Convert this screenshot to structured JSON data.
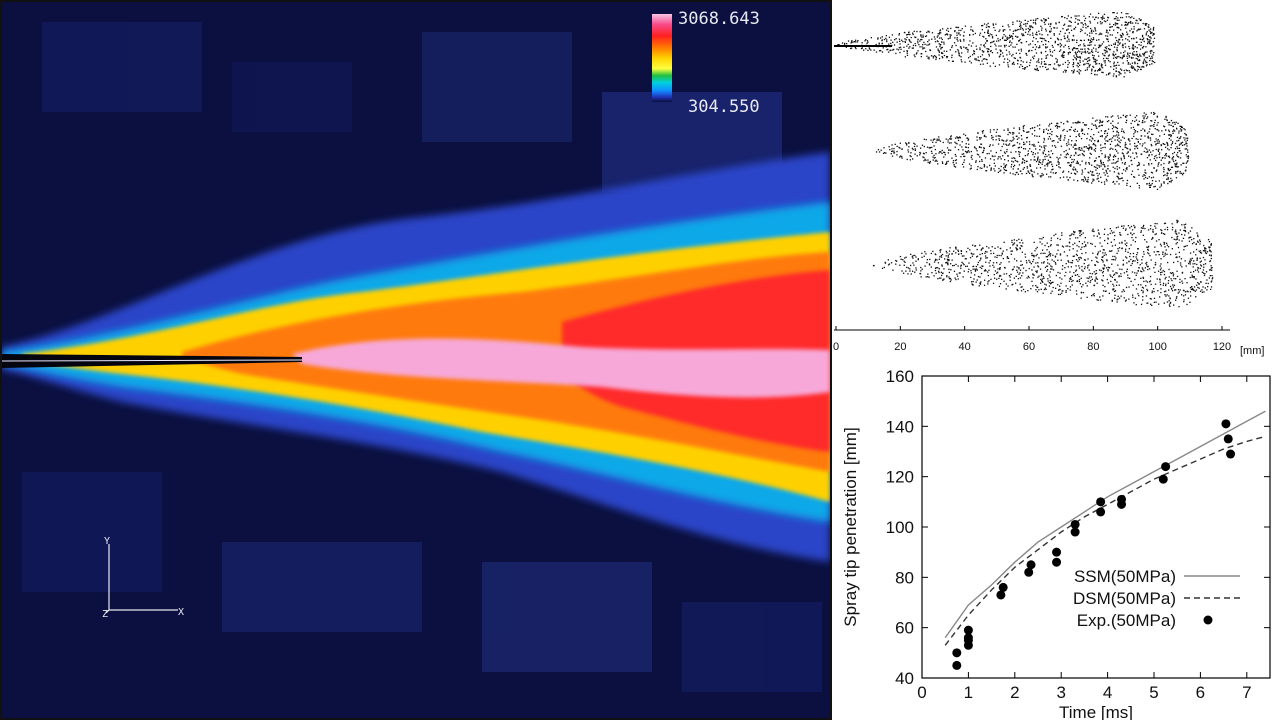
{
  "colorbar": {
    "max_label": "3068.643",
    "min_label": "304.550",
    "colors": [
      "#f9c6e6",
      "#f84a8a",
      "#ff2020",
      "#ff7a00",
      "#ffd200",
      "#ffff40",
      "#20c040",
      "#00d0e0",
      "#1090ff",
      "#2038c0",
      "#0a0f3a"
    ]
  },
  "axes_triad": {
    "y_label": "Y",
    "z_label": "Z",
    "x_label": "X"
  },
  "spray_axis": {
    "ticks": [
      "0",
      "20",
      "40",
      "60",
      "80",
      "100",
      "120"
    ],
    "unit": "[mm]"
  },
  "chart_data": {
    "type": "line",
    "xlabel": "Time [ms]",
    "ylabel": "Spray tip penetration [mm]",
    "xlim": [
      0,
      7.5
    ],
    "ylim": [
      40,
      160
    ],
    "xticks": [
      "0",
      "1",
      "2",
      "3",
      "4",
      "5",
      "6",
      "7"
    ],
    "yticks": [
      "40",
      "60",
      "80",
      "100",
      "120",
      "140",
      "160"
    ],
    "legend_position": "bottom-right",
    "series": [
      {
        "name": "SSM(50MPa)",
        "style": "solid",
        "color": "#888888",
        "x": [
          0.5,
          1.0,
          1.5,
          2.0,
          2.5,
          3.0,
          3.5,
          4.0,
          4.5,
          5.0,
          5.5,
          6.0,
          6.5,
          7.0,
          7.4
        ],
        "y": [
          56,
          69,
          77,
          86,
          94,
          100,
          106,
          112,
          117,
          122,
          127,
          132,
          137,
          142,
          146
        ]
      },
      {
        "name": "DSM(50MPa)",
        "style": "dashed",
        "color": "#333333",
        "x": [
          0.5,
          1.0,
          1.5,
          2.0,
          2.5,
          3.0,
          3.5,
          4.0,
          4.5,
          5.0,
          5.5,
          6.0,
          6.5,
          7.0,
          7.4
        ],
        "y": [
          53,
          65,
          75,
          84,
          91,
          98,
          104,
          109,
          114,
          119,
          123,
          127,
          131,
          134,
          136
        ]
      },
      {
        "name": "Exp.(50MPa)",
        "style": "markers",
        "color": "#000000",
        "x": [
          0.75,
          0.75,
          1.0,
          1.0,
          1.0,
          1.0,
          1.7,
          1.75,
          2.3,
          2.35,
          2.9,
          2.9,
          3.3,
          3.3,
          3.85,
          3.85,
          4.3,
          4.3,
          5.2,
          5.25,
          6.55,
          6.6,
          6.65
        ],
        "y": [
          45,
          50,
          53,
          55,
          56,
          59,
          73,
          76,
          82,
          85,
          86,
          90,
          98,
          101,
          106,
          110,
          109,
          111,
          119,
          124,
          141,
          135,
          129
        ]
      }
    ]
  }
}
